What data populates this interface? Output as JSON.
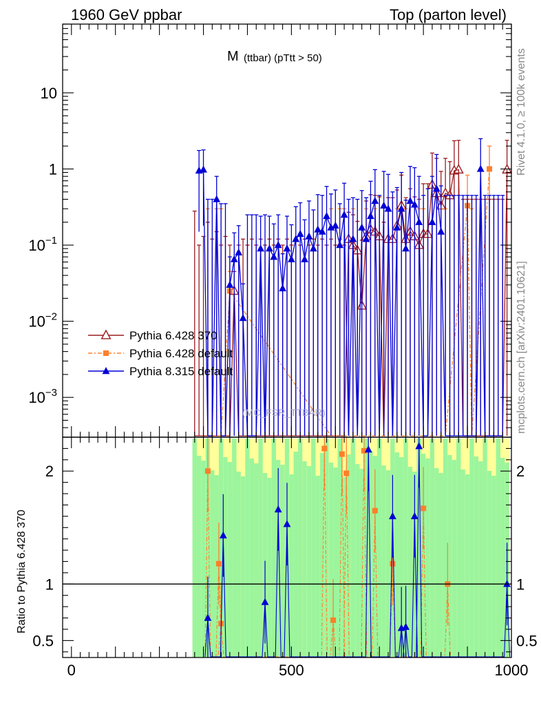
{
  "header": {
    "left": "1960 GeV ppbar",
    "right": "Top (parton level)"
  },
  "side_texts": {
    "rivet": "Rivet 4.1.0, ≥ 100k events",
    "mcplots": "mcplots.cern.ch [arXiv:2401.10621]"
  },
  "chart_data": {
    "type": "line",
    "title_main": "M",
    "title_sub": "(ttbar) (pTtt > 50)",
    "watermark": "(MC_FSR_TTBAR)",
    "xlabel": "",
    "xlim": [
      -20,
      1000
    ],
    "main_panel": {
      "yscale": "log",
      "ylim": [
        0.0003,
        80
      ],
      "ytick_labels": [
        {
          "label": "10",
          "value": 10
        },
        {
          "label": "1",
          "value": 1
        },
        {
          "label": "10",
          "sup": "−1",
          "value": 0.1
        },
        {
          "label": "10",
          "sup": "−2",
          "value": 0.01
        },
        {
          "label": "10",
          "sup": "−3",
          "value": 0.001
        }
      ]
    },
    "ratio_panel": {
      "ylabel": "Ratio to Pythia 6.428 370",
      "ylim": [
        0.35,
        2.3
      ],
      "ytick_labels": [
        "2",
        "1",
        "0.5"
      ],
      "ytick_values": [
        2,
        1,
        0.5
      ]
    },
    "xtick_labels": [
      "0",
      "500",
      "1000"
    ],
    "xtick_values": [
      0,
      500,
      1000
    ],
    "legend": [
      {
        "label": "Pythia 6.428 370",
        "color": "#9b1b1f",
        "marker": "open-triangle"
      },
      {
        "label": "Pythia 6.428 default",
        "color": "#ff7f2a",
        "marker": "square"
      },
      {
        "label": "Pythia 8.315 default",
        "color": "#0000d6",
        "marker": "filled-triangle"
      }
    ],
    "series": [
      {
        "name": "Pythia 6.428 370",
        "color": "#9b1b1f",
        "x": [
          280,
          290,
          300,
          310,
          320,
          330,
          340,
          350,
          360,
          370,
          380,
          390,
          400,
          410,
          420,
          430,
          440,
          450,
          460,
          470,
          480,
          490,
          500,
          510,
          520,
          530,
          540,
          550,
          560,
          570,
          580,
          590,
          600,
          610,
          620,
          630,
          640,
          650,
          660,
          670,
          680,
          690,
          700,
          710,
          720,
          730,
          740,
          750,
          760,
          770,
          780,
          790,
          800,
          810,
          820,
          830,
          840,
          850,
          860,
          870,
          880,
          890,
          900,
          910,
          920,
          930,
          940,
          950,
          960,
          970,
          980,
          990
        ],
        "values": [
          0,
          0,
          0,
          0,
          0,
          0,
          0,
          0,
          0,
          0.025,
          0,
          0,
          0,
          0,
          0,
          0,
          0,
          0,
          0,
          0,
          0,
          0,
          0,
          0,
          0,
          0,
          0,
          0,
          0,
          0,
          0,
          0,
          0,
          0,
          0,
          0.12,
          0.1,
          0.085,
          0.016,
          0.13,
          0.16,
          0.15,
          0.13,
          0,
          0.12,
          0.12,
          0.18,
          0.33,
          0.12,
          0.15,
          0.13,
          0.1,
          0.14,
          0.14,
          0.62,
          0.48,
          0.33,
          0.48,
          0.45,
          0.95,
          0.98,
          0,
          0,
          0,
          0,
          0,
          0,
          0,
          0,
          0,
          0,
          0.98
        ],
        "errors": [
          0.28,
          0.1,
          0.13,
          0.2,
          0.12,
          0.15,
          0.1,
          0.13,
          0.1,
          0.02,
          0.1,
          0.12,
          0.1,
          0.12,
          0.1,
          0.12,
          0.1,
          0.12,
          0.1,
          0.12,
          0.1,
          0.12,
          0.1,
          0.12,
          0.1,
          0.12,
          0.1,
          0.12,
          0.1,
          0.12,
          0.1,
          0.12,
          0.1,
          0.12,
          0.1,
          0.15,
          0.15,
          0.12,
          0.1,
          0.25,
          0.3,
          0.3,
          0.3,
          0.2,
          0.3,
          0.3,
          0.35,
          0.5,
          0.3,
          0.4,
          0.3,
          0.3,
          0.5,
          0.5,
          1.0,
          0.9,
          0.6,
          0.9,
          0.8,
          1.4,
          1.4,
          0.4,
          0.4,
          0.4,
          0.4,
          0.4,
          0.4,
          0.4,
          0.4,
          0.4,
          0.4,
          1.4
        ]
      },
      {
        "name": "Pythia 6.428 default",
        "color": "#ff7f2a",
        "x": [
          310,
          330,
          340,
          360,
          590,
          610,
          620,
          640,
          670,
          690,
          720,
          740,
          760,
          790,
          800,
          840,
          850,
          900,
          910,
          950
        ],
        "values": [
          0,
          0,
          0,
          0.025,
          0,
          0,
          0,
          0,
          0,
          0,
          0,
          0,
          0,
          0,
          0,
          0,
          0,
          0.33,
          0,
          1.0
        ],
        "errors": [
          0.3,
          0.3,
          0.3,
          0.02,
          0.3,
          0.3,
          0.3,
          0.3,
          0.3,
          0.3,
          0.3,
          0.3,
          0.3,
          0.3,
          0.3,
          0.3,
          0.3,
          0.5,
          0.3,
          1.0
        ]
      },
      {
        "name": "Pythia 8.315 default",
        "color": "#0000d6",
        "x": [
          290,
          300,
          310,
          320,
          330,
          340,
          350,
          360,
          370,
          380,
          390,
          400,
          410,
          420,
          430,
          440,
          450,
          460,
          470,
          480,
          490,
          500,
          510,
          520,
          530,
          540,
          550,
          560,
          570,
          580,
          590,
          600,
          610,
          620,
          630,
          640,
          650,
          660,
          670,
          680,
          690,
          700,
          710,
          720,
          730,
          740,
          750,
          760,
          770,
          780,
          790,
          800,
          810,
          820,
          830,
          840,
          850,
          860,
          870,
          880,
          890,
          900,
          910,
          920,
          930,
          940,
          950,
          960,
          970,
          980
        ],
        "values": [
          0.95,
          0.98,
          0,
          0,
          0.4,
          0,
          0,
          0.03,
          0.065,
          0.08,
          0.011,
          0,
          0,
          0,
          0.09,
          0,
          0.09,
          0.07,
          0.1,
          0.027,
          0.09,
          0.065,
          0.12,
          0.14,
          0.065,
          0.13,
          0.09,
          0.16,
          0.15,
          0.24,
          0.17,
          0.18,
          0.1,
          0.25,
          0,
          0.12,
          0,
          0.17,
          0.12,
          0.24,
          0.38,
          0,
          0.33,
          0.3,
          0,
          0.17,
          0.3,
          0.09,
          0.38,
          0.34,
          0.2,
          0,
          0,
          0.2,
          0.55,
          0.15,
          0,
          0,
          0,
          0,
          0,
          0,
          0,
          0,
          1.0,
          0,
          0,
          0,
          0,
          0
        ],
        "errors": [
          0.8,
          0.8,
          0.4,
          0.4,
          0.4,
          0.35,
          0.35,
          0.04,
          0.08,
          0.1,
          0.02,
          0.25,
          0.25,
          0.25,
          0.15,
          0.25,
          0.15,
          0.12,
          0.15,
          0.05,
          0.15,
          0.12,
          0.2,
          0.22,
          0.15,
          0.25,
          0.2,
          0.3,
          0.3,
          0.35,
          0.3,
          0.35,
          0.25,
          0.4,
          0.4,
          0.3,
          0.4,
          0.35,
          0.3,
          0.45,
          0.6,
          0.45,
          0.6,
          0.55,
          0.5,
          0.4,
          0.6,
          0.3,
          0.7,
          0.7,
          0.6,
          0.45,
          0.55,
          0.6,
          1.0,
          0.45,
          0.45,
          0.45,
          0.45,
          0.45,
          0.45,
          0.45,
          0.45,
          0.45,
          1.5,
          0.45,
          0.45,
          0.45,
          0.45,
          0.45
        ]
      }
    ],
    "ratio_points": [
      {
        "series": "Pythia 6.428 default",
        "x": 310,
        "y": 2.0
      },
      {
        "series": "Pythia 6.428 default",
        "x": 335,
        "y": 1.18
      },
      {
        "series": "Pythia 6.428 default",
        "x": 340,
        "y": 0.65
      },
      {
        "series": "Pythia 6.428 default",
        "x": 575,
        "y": 2.2
      },
      {
        "series": "Pythia 6.428 default",
        "x": 595,
        "y": 0.68
      },
      {
        "series": "Pythia 6.428 default",
        "x": 615,
        "y": 2.15
      },
      {
        "series": "Pythia 6.428 default",
        "x": 625,
        "y": 1.98
      },
      {
        "series": "Pythia 6.428 default",
        "x": 665,
        "y": 2.18
      },
      {
        "series": "Pythia 6.428 default",
        "x": 690,
        "y": 1.65
      },
      {
        "series": "Pythia 6.428 default",
        "x": 730,
        "y": 1.18
      },
      {
        "series": "Pythia 6.428 default",
        "x": 800,
        "y": 1.67
      },
      {
        "series": "Pythia 6.428 default",
        "x": 855,
        "y": 1.0
      },
      {
        "series": "Pythia 8.315 default",
        "x": 310,
        "y": 0.7
      },
      {
        "series": "Pythia 8.315 default",
        "x": 345,
        "y": 1.43
      },
      {
        "series": "Pythia 8.315 default",
        "x": 440,
        "y": 0.84
      },
      {
        "series": "Pythia 8.315 default",
        "x": 470,
        "y": 1.66
      },
      {
        "series": "Pythia 8.315 default",
        "x": 490,
        "y": 1.53
      },
      {
        "series": "Pythia 8.315 default",
        "x": 675,
        "y": 2.19
      },
      {
        "series": "Pythia 8.315 default",
        "x": 730,
        "y": 1.6
      },
      {
        "series": "Pythia 8.315 default",
        "x": 750,
        "y": 0.61
      },
      {
        "series": "Pythia 8.315 default",
        "x": 760,
        "y": 0.62
      },
      {
        "series": "Pythia 8.315 default",
        "x": 780,
        "y": 1.6
      },
      {
        "series": "Pythia 8.315 default",
        "x": 790,
        "y": 2.22
      },
      {
        "series": "Pythia 8.315 default",
        "x": 990,
        "y": 1.0
      }
    ]
  }
}
